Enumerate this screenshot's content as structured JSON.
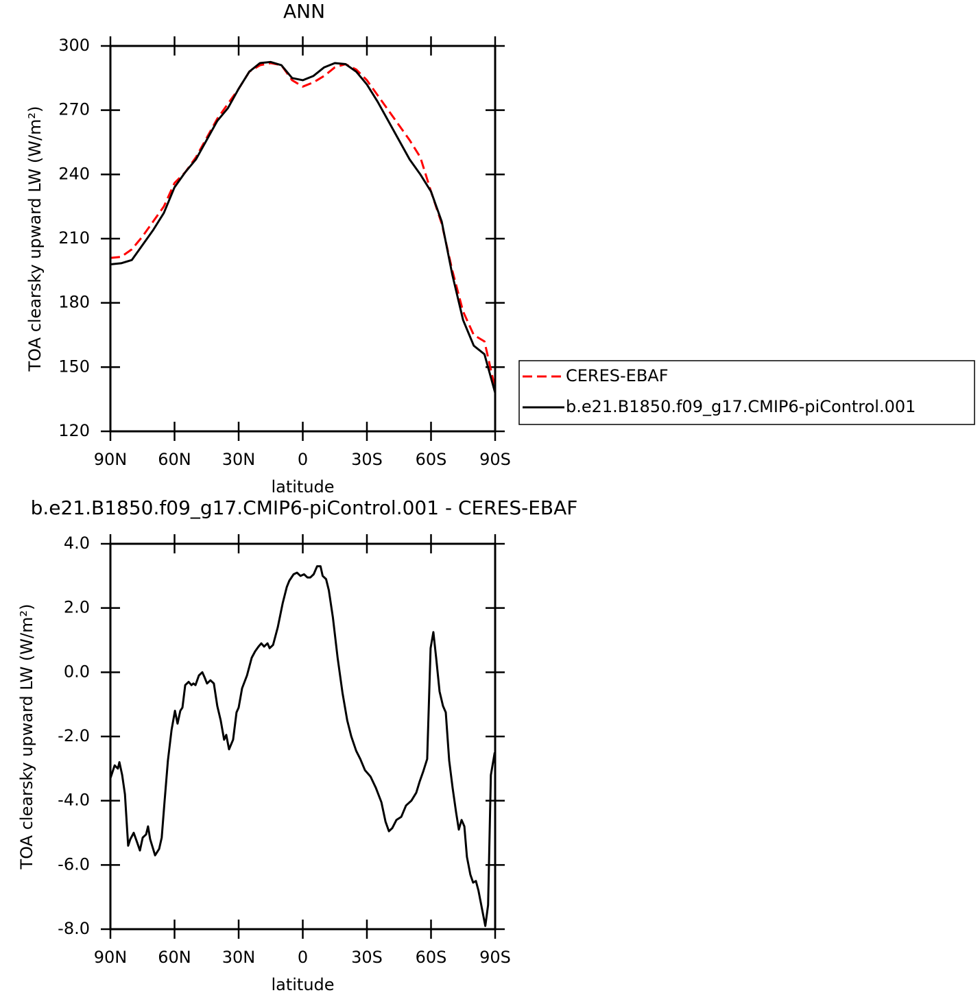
{
  "chart_data": [
    {
      "type": "line",
      "title": "ANN",
      "xlabel": "latitude",
      "ylabel": "TOA clearsky upward LW (W/m²)",
      "x": [
        90,
        85,
        80,
        75,
        70,
        65,
        60,
        55,
        50,
        45,
        40,
        35,
        30,
        25,
        20,
        15,
        10,
        5,
        0,
        -5,
        -10,
        -15,
        -20,
        -25,
        -30,
        -35,
        -40,
        -45,
        -50,
        -55,
        -60,
        -65,
        -70,
        -75,
        -80,
        -85,
        -90
      ],
      "series": [
        {
          "name": "CERES-EBAF",
          "color": "#ff0000",
          "line_style": "dashed",
          "values": [
            201,
            201.5,
            205,
            211,
            218,
            225,
            236,
            241,
            248,
            257,
            266,
            273,
            280,
            288,
            291,
            292,
            291,
            284,
            281,
            283,
            286,
            290,
            291.5,
            289,
            284,
            277,
            270,
            263,
            256,
            248,
            232,
            217,
            195,
            176,
            165,
            162,
            140
          ]
        },
        {
          "name": "b.e21.B1850.f09_g17.CMIP6-piControl.001",
          "color": "#000000",
          "line_style": "solid",
          "values": [
            198,
            198.5,
            200,
            207,
            214,
            222,
            234,
            241,
            247,
            256,
            265,
            271,
            280,
            288,
            292,
            292.5,
            291,
            285,
            284,
            286,
            290,
            292,
            291.5,
            288,
            282,
            274,
            265,
            256,
            247,
            240,
            232,
            218,
            193,
            172,
            160,
            156,
            138
          ]
        }
      ],
      "xlim": [
        90,
        -90
      ],
      "xticks": [
        {
          "value": 90,
          "label": "90N"
        },
        {
          "value": 60,
          "label": "60N"
        },
        {
          "value": 30,
          "label": "30N"
        },
        0,
        {
          "value": -30,
          "label": "30S"
        },
        {
          "value": -60,
          "label": "60S"
        },
        {
          "value": -90,
          "label": "90S"
        }
      ],
      "ylim": [
        120,
        300
      ],
      "yticks": [
        120,
        150,
        180,
        210,
        240,
        270,
        300
      ],
      "legend": "right"
    },
    {
      "type": "line",
      "title": "b.e21.B1850.f09_g17.CMIP6-piControl.001 - CERES-EBAF",
      "xlabel": "latitude",
      "ylabel": "TOA clearsky upward LW (W/m²)",
      "x": [
        90,
        88,
        86.5,
        85.8,
        84.5,
        83.2,
        81.7,
        80.7,
        79.1,
        77.5,
        76.2,
        74.9,
        73.3,
        72.4,
        71.4,
        69.1,
        67.2,
        66,
        64.7,
        63.1,
        61.4,
        59.8,
        58.6,
        57.3,
        56.3,
        55,
        53.4,
        52.1,
        51.2,
        50.2,
        48.6,
        47,
        46,
        44.8,
        43.2,
        41.6,
        40,
        38.4,
        36.8,
        35.8,
        34.5,
        32.6,
        31,
        30,
        28.4,
        26.1,
        23.9,
        22.3,
        20.7,
        19.4,
        18.1,
        16.5,
        15.5,
        13.9,
        11.7,
        9.4,
        7.5,
        6.3,
        4.3,
        2.7,
        1.1,
        -0.6,
        -2.2,
        -3.5,
        -5.1,
        -6.7,
        -8.3,
        -9.3,
        -10.9,
        -12.2,
        -14.1,
        -16.3,
        -18.6,
        -20.8,
        -22.7,
        -25,
        -26.9,
        -29.1,
        -31.7,
        -34.2,
        -36.8,
        -38.7,
        -40.3,
        -41.9,
        -43.8,
        -46.1,
        -48.3,
        -50.8,
        -53.1,
        -54.7,
        -56.3,
        -58.2,
        -59.8,
        -61.1,
        -62.4,
        -64,
        -65.6,
        -66.9,
        -68.5,
        -70.1,
        -71.7,
        -73,
        -74.3,
        -75.6,
        -76.8,
        -78.4,
        -79.7,
        -81,
        -82.2,
        -83.8,
        -85.4,
        -86.7,
        -88,
        -89.8
      ],
      "values": [
        -3.3,
        -2.9,
        -3.0,
        -2.8,
        -3.2,
        -3.8,
        -5.4,
        -5.2,
        -5.0,
        -5.3,
        -5.55,
        -5.15,
        -5.05,
        -4.8,
        -5.2,
        -5.7,
        -5.5,
        -5.15,
        -4.05,
        -2.75,
        -1.8,
        -1.2,
        -1.6,
        -1.2,
        -1.1,
        -0.4,
        -0.3,
        -0.4,
        -0.35,
        -0.4,
        -0.1,
        0.0,
        -0.15,
        -0.35,
        -0.25,
        -0.35,
        -1.05,
        -1.5,
        -2.1,
        -1.95,
        -2.4,
        -2.1,
        -1.25,
        -1.1,
        -0.5,
        -0.1,
        0.45,
        0.65,
        0.8,
        0.9,
        0.8,
        0.9,
        0.75,
        0.85,
        1.4,
        2.15,
        2.65,
        2.85,
        3.05,
        3.1,
        3.0,
        3.05,
        2.95,
        2.95,
        3.05,
        3.3,
        3.3,
        3.0,
        2.9,
        2.55,
        1.7,
        0.45,
        -0.65,
        -1.5,
        -2.0,
        -2.45,
        -2.7,
        -3.05,
        -3.25,
        -3.6,
        -4.05,
        -4.65,
        -4.95,
        -4.85,
        -4.6,
        -4.5,
        -4.15,
        -4.0,
        -3.75,
        -3.4,
        -3.1,
        -2.7,
        0.75,
        1.25,
        0.45,
        -0.6,
        -1.05,
        -1.25,
        -2.75,
        -3.6,
        -4.35,
        -4.9,
        -4.6,
        -4.8,
        -5.75,
        -6.3,
        -6.55,
        -6.5,
        -6.8,
        -7.35,
        -7.9,
        -7.25,
        -3.2,
        -2.5
      ],
      "color": "#000000",
      "xlim": [
        90,
        -90
      ],
      "xticks": [
        {
          "value": 90,
          "label": "90N"
        },
        {
          "value": 60,
          "label": "60N"
        },
        {
          "value": 30,
          "label": "30N"
        },
        0,
        {
          "value": -30,
          "label": "30S"
        },
        {
          "value": -60,
          "label": "60S"
        },
        {
          "value": -90,
          "label": "90S"
        }
      ],
      "ylim": [
        -8,
        4
      ],
      "yticks": [
        {
          "value": -8,
          "label": "-8.0"
        },
        {
          "value": -6,
          "label": "-6.0"
        },
        {
          "value": -4,
          "label": "-4.0"
        },
        {
          "value": -2,
          "label": "-2.0"
        },
        {
          "value": 0,
          "label": "0.0"
        },
        {
          "value": 2,
          "label": "2.0"
        },
        {
          "value": 4,
          "label": "4.0"
        }
      ]
    }
  ]
}
